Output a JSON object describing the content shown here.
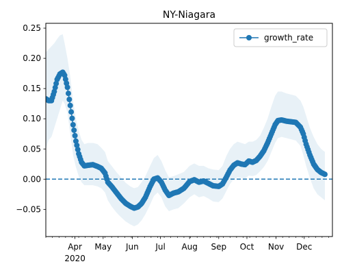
{
  "chart_data": {
    "type": "line",
    "title": "NY-Niagara",
    "xlabel": "",
    "ylabel": "",
    "x_axis": {
      "type": "date",
      "range": [
        "2020-03-01",
        "2020-12-31"
      ],
      "major_ticks": [
        {
          "date": "2020-04-01",
          "label": "Apr"
        },
        {
          "date": "2020-05-01",
          "label": "May"
        },
        {
          "date": "2020-06-01",
          "label": "Jun"
        },
        {
          "date": "2020-07-01",
          "label": "Jul"
        },
        {
          "date": "2020-08-01",
          "label": "Aug"
        },
        {
          "date": "2020-09-01",
          "label": "Sep"
        },
        {
          "date": "2020-10-01",
          "label": "Oct"
        },
        {
          "date": "2020-11-01",
          "label": "Nov"
        },
        {
          "date": "2020-12-01",
          "label": "Dec"
        }
      ],
      "year_label": {
        "date": "2020-04-01",
        "label": "2020"
      }
    },
    "ylim": [
      -0.095,
      0.258
    ],
    "yticks": [
      {
        "value": -0.05,
        "label": "−0.05"
      },
      {
        "value": 0.0,
        "label": "0.00"
      },
      {
        "value": 0.05,
        "label": "0.05"
      },
      {
        "value": 0.1,
        "label": "0.10"
      },
      {
        "value": 0.15,
        "label": "0.15"
      },
      {
        "value": 0.2,
        "label": "0.20"
      },
      {
        "value": 0.25,
        "label": "0.25"
      }
    ],
    "grid": false,
    "legend": {
      "position": "top-right"
    },
    "reference_line": {
      "y": 0.0,
      "style": "dashed",
      "color": "#1f77b4"
    },
    "series": [
      {
        "name": "growth_rate",
        "color": "#1f77b4",
        "marker": "circle",
        "band_color": "#1f77b4",
        "points": [
          {
            "x": "2020-03-01",
            "y": 0.133,
            "lo": 0.05,
            "hi": 0.21
          },
          {
            "x": "2020-03-04",
            "y": 0.13,
            "lo": 0.065,
            "hi": 0.215
          },
          {
            "x": "2020-03-07",
            "y": 0.13,
            "lo": 0.07,
            "hi": 0.22
          },
          {
            "x": "2020-03-10",
            "y": 0.145,
            "lo": 0.085,
            "hi": 0.225
          },
          {
            "x": "2020-03-13",
            "y": 0.165,
            "lo": 0.1,
            "hi": 0.232
          },
          {
            "x": "2020-03-16",
            "y": 0.174,
            "lo": 0.115,
            "hi": 0.238
          },
          {
            "x": "2020-03-19",
            "y": 0.177,
            "lo": 0.13,
            "hi": 0.24
          },
          {
            "x": "2020-03-21",
            "y": 0.172,
            "lo": 0.125,
            "hi": 0.225
          },
          {
            "x": "2020-03-24",
            "y": 0.152,
            "lo": 0.11,
            "hi": 0.2
          },
          {
            "x": "2020-03-27",
            "y": 0.122,
            "lo": 0.075,
            "hi": 0.17
          },
          {
            "x": "2020-03-30",
            "y": 0.09,
            "lo": 0.04,
            "hi": 0.13
          },
          {
            "x": "2020-04-02",
            "y": 0.063,
            "lo": 0.02,
            "hi": 0.1
          },
          {
            "x": "2020-04-05",
            "y": 0.042,
            "lo": 0.005,
            "hi": 0.08
          },
          {
            "x": "2020-04-08",
            "y": 0.028,
            "lo": -0.005,
            "hi": 0.065
          },
          {
            "x": "2020-04-11",
            "y": 0.022,
            "lo": -0.01,
            "hi": 0.058
          },
          {
            "x": "2020-04-15",
            "y": 0.023,
            "lo": -0.01,
            "hi": 0.06
          },
          {
            "x": "2020-04-20",
            "y": 0.024,
            "lo": -0.01,
            "hi": 0.06
          },
          {
            "x": "2020-04-25",
            "y": 0.021,
            "lo": -0.012,
            "hi": 0.058
          },
          {
            "x": "2020-04-29",
            "y": 0.018,
            "lo": -0.015,
            "hi": 0.052
          },
          {
            "x": "2020-05-03",
            "y": 0.01,
            "lo": -0.022,
            "hi": 0.045
          },
          {
            "x": "2020-05-06",
            "y": -0.005,
            "lo": -0.035,
            "hi": 0.03
          },
          {
            "x": "2020-05-10",
            "y": -0.012,
            "lo": -0.045,
            "hi": 0.022
          },
          {
            "x": "2020-05-15",
            "y": -0.022,
            "lo": -0.055,
            "hi": 0.012
          },
          {
            "x": "2020-05-20",
            "y": -0.032,
            "lo": -0.063,
            "hi": 0.003
          },
          {
            "x": "2020-05-25",
            "y": -0.04,
            "lo": -0.07,
            "hi": -0.006
          },
          {
            "x": "2020-05-30",
            "y": -0.045,
            "lo": -0.075,
            "hi": -0.012
          },
          {
            "x": "2020-06-03",
            "y": -0.048,
            "lo": -0.078,
            "hi": -0.015
          },
          {
            "x": "2020-06-07",
            "y": -0.046,
            "lo": -0.075,
            "hi": -0.013
          },
          {
            "x": "2020-06-11",
            "y": -0.04,
            "lo": -0.068,
            "hi": -0.005
          },
          {
            "x": "2020-06-15",
            "y": -0.03,
            "lo": -0.058,
            "hi": 0.005
          },
          {
            "x": "2020-06-20",
            "y": -0.012,
            "lo": -0.042,
            "hi": 0.022
          },
          {
            "x": "2020-06-24",
            "y": 0.0,
            "lo": -0.028,
            "hi": 0.035
          },
          {
            "x": "2020-06-28",
            "y": 0.002,
            "lo": -0.022,
            "hi": 0.04
          },
          {
            "x": "2020-07-02",
            "y": -0.005,
            "lo": -0.03,
            "hi": 0.03
          },
          {
            "x": "2020-07-06",
            "y": -0.018,
            "lo": -0.045,
            "hi": 0.015
          },
          {
            "x": "2020-07-10",
            "y": -0.027,
            "lo": -0.053,
            "hi": 0.003
          },
          {
            "x": "2020-07-15",
            "y": -0.023,
            "lo": -0.05,
            "hi": 0.005
          },
          {
            "x": "2020-07-20",
            "y": -0.021,
            "lo": -0.048,
            "hi": 0.008
          },
          {
            "x": "2020-07-26",
            "y": -0.015,
            "lo": -0.04,
            "hi": 0.012
          },
          {
            "x": "2020-08-01",
            "y": -0.004,
            "lo": -0.03,
            "hi": 0.022
          },
          {
            "x": "2020-08-06",
            "y": -0.001,
            "lo": -0.025,
            "hi": 0.026
          },
          {
            "x": "2020-08-11",
            "y": -0.005,
            "lo": -0.03,
            "hi": 0.022
          },
          {
            "x": "2020-08-16",
            "y": -0.003,
            "lo": -0.028,
            "hi": 0.022
          },
          {
            "x": "2020-08-21",
            "y": -0.007,
            "lo": -0.032,
            "hi": 0.018
          },
          {
            "x": "2020-08-26",
            "y": -0.011,
            "lo": -0.037,
            "hi": 0.016
          },
          {
            "x": "2020-09-01",
            "y": -0.012,
            "lo": -0.038,
            "hi": 0.015
          },
          {
            "x": "2020-09-05",
            "y": -0.008,
            "lo": -0.032,
            "hi": 0.022
          },
          {
            "x": "2020-09-09",
            "y": 0.003,
            "lo": -0.02,
            "hi": 0.038
          },
          {
            "x": "2020-09-13",
            "y": 0.015,
            "lo": -0.008,
            "hi": 0.05
          },
          {
            "x": "2020-09-17",
            "y": 0.023,
            "lo": 0.0,
            "hi": 0.058
          },
          {
            "x": "2020-09-21",
            "y": 0.027,
            "lo": 0.003,
            "hi": 0.062
          },
          {
            "x": "2020-09-25",
            "y": 0.025,
            "lo": 0.002,
            "hi": 0.06
          },
          {
            "x": "2020-09-29",
            "y": 0.024,
            "lo": 0.001,
            "hi": 0.058
          },
          {
            "x": "2020-10-03",
            "y": 0.03,
            "lo": 0.006,
            "hi": 0.062
          },
          {
            "x": "2020-10-07",
            "y": 0.028,
            "lo": 0.005,
            "hi": 0.062
          },
          {
            "x": "2020-10-11",
            "y": 0.031,
            "lo": 0.007,
            "hi": 0.065
          },
          {
            "x": "2020-10-15",
            "y": 0.038,
            "lo": 0.013,
            "hi": 0.072
          },
          {
            "x": "2020-10-19",
            "y": 0.047,
            "lo": 0.02,
            "hi": 0.085
          },
          {
            "x": "2020-10-23",
            "y": 0.06,
            "lo": 0.03,
            "hi": 0.1
          },
          {
            "x": "2020-10-27",
            "y": 0.075,
            "lo": 0.045,
            "hi": 0.12
          },
          {
            "x": "2020-10-31",
            "y": 0.09,
            "lo": 0.06,
            "hi": 0.138
          },
          {
            "x": "2020-11-03",
            "y": 0.097,
            "lo": 0.068,
            "hi": 0.145
          },
          {
            "x": "2020-11-07",
            "y": 0.098,
            "lo": 0.07,
            "hi": 0.145
          },
          {
            "x": "2020-11-12",
            "y": 0.096,
            "lo": 0.068,
            "hi": 0.142
          },
          {
            "x": "2020-11-17",
            "y": 0.095,
            "lo": 0.066,
            "hi": 0.14
          },
          {
            "x": "2020-11-22",
            "y": 0.094,
            "lo": 0.064,
            "hi": 0.138
          },
          {
            "x": "2020-11-27",
            "y": 0.086,
            "lo": 0.055,
            "hi": 0.13
          },
          {
            "x": "2020-11-30",
            "y": 0.075,
            "lo": 0.04,
            "hi": 0.12
          },
          {
            "x": "2020-12-03",
            "y": 0.058,
            "lo": 0.022,
            "hi": 0.105
          },
          {
            "x": "2020-12-07",
            "y": 0.04,
            "lo": 0.002,
            "hi": 0.085
          },
          {
            "x": "2020-12-11",
            "y": 0.025,
            "lo": -0.015,
            "hi": 0.07
          },
          {
            "x": "2020-12-15",
            "y": 0.016,
            "lo": -0.025,
            "hi": 0.058
          },
          {
            "x": "2020-12-19",
            "y": 0.011,
            "lo": -0.03,
            "hi": 0.05
          },
          {
            "x": "2020-12-23",
            "y": 0.008,
            "lo": -0.035,
            "hi": 0.045
          }
        ]
      }
    ]
  }
}
